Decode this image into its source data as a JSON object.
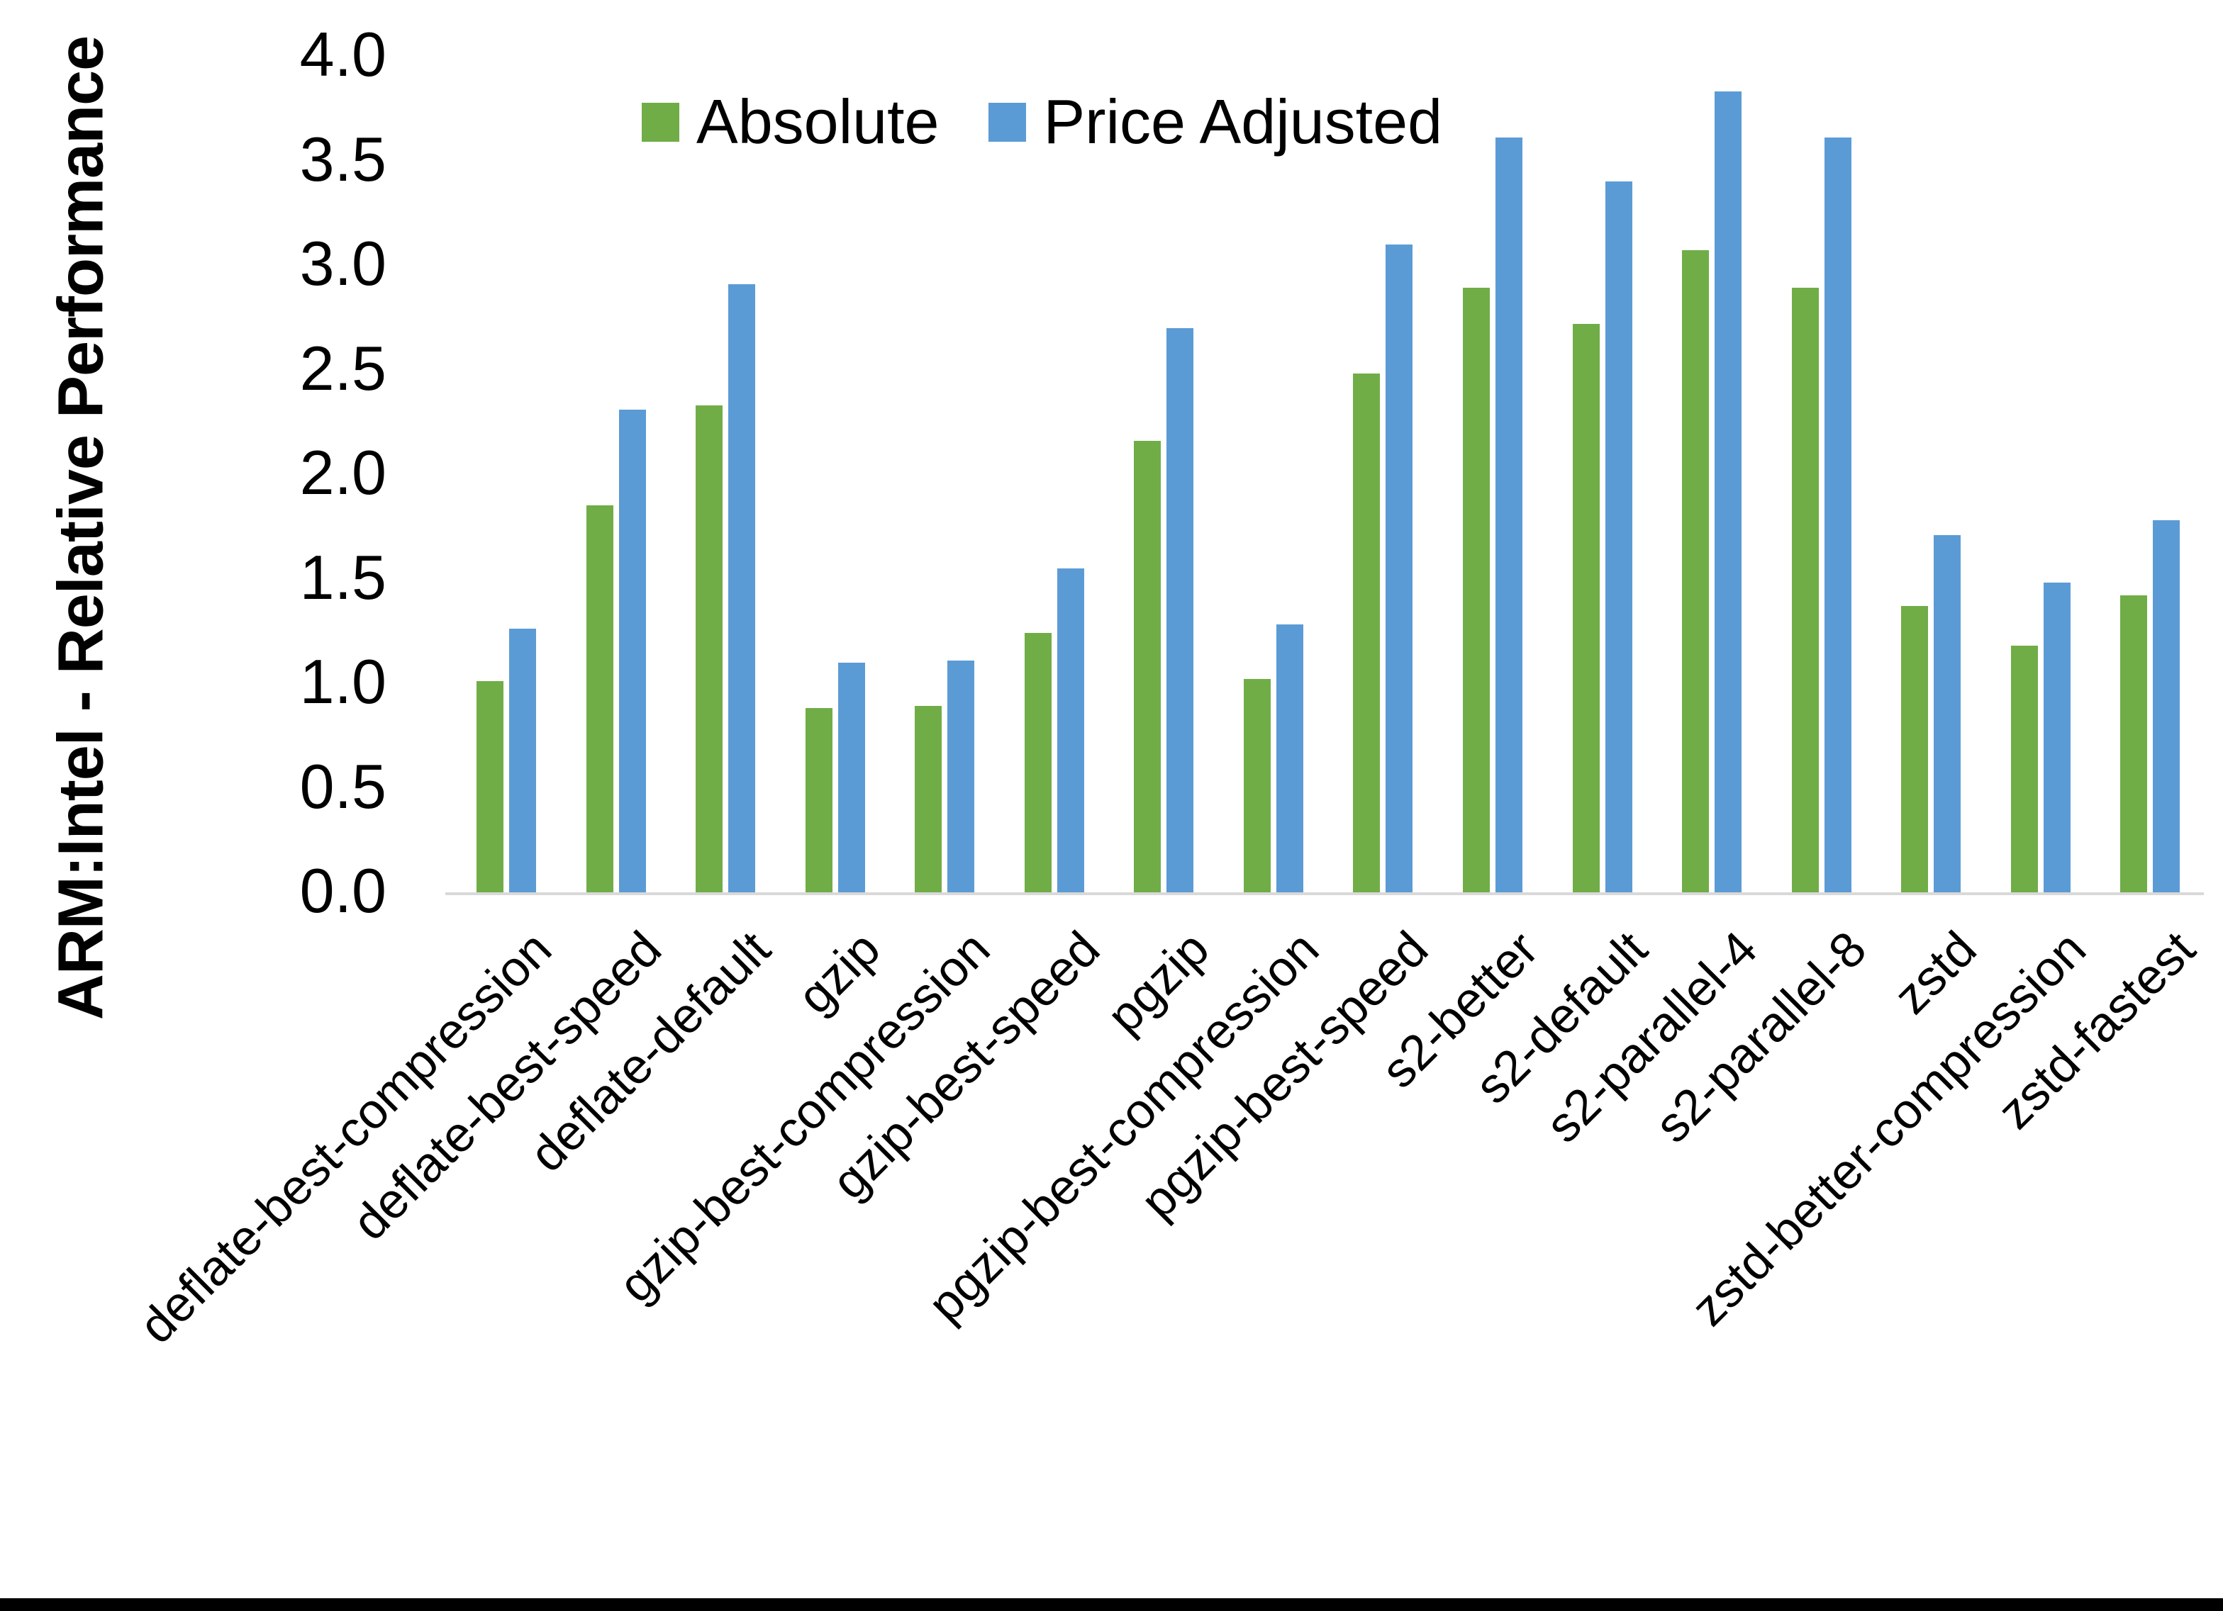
{
  "chart_data": {
    "type": "bar",
    "title": "",
    "xlabel": "",
    "ylabel": "ARM:Intel - Relative Performance",
    "ylim": [
      0.0,
      4.0
    ],
    "ytick_step": 0.5,
    "yticks": [
      "0.0",
      "0.5",
      "1.0",
      "1.5",
      "2.0",
      "2.5",
      "3.0",
      "3.5",
      "4.0"
    ],
    "grid": false,
    "legend_position": "top",
    "categories": [
      "deflate-best-compression",
      "deflate-best-speed",
      "deflate-default",
      "gzip",
      "gzip-best-compression",
      "gzip-best-speed",
      "pgzip",
      "pgzip-best-compression",
      "pgzip-best-speed",
      "s2-better",
      "s2-default",
      "s2-parallel-4",
      "s2-parallel-8",
      "zstd",
      "zstd-better-compression",
      "zstd-fastest"
    ],
    "series": [
      {
        "name": "Absolute",
        "color": "#70AD47",
        "values": [
          1.01,
          1.85,
          2.33,
          0.88,
          0.89,
          1.24,
          2.16,
          1.02,
          2.48,
          2.89,
          2.72,
          3.07,
          2.89,
          1.37,
          1.18,
          1.42
        ]
      },
      {
        "name": "Price Adjusted",
        "color": "#5B9BD5",
        "values": [
          1.26,
          2.31,
          2.91,
          1.1,
          1.11,
          1.55,
          2.7,
          1.28,
          3.1,
          3.61,
          3.4,
          3.83,
          3.61,
          1.71,
          1.48,
          1.78
        ]
      }
    ]
  },
  "colors": {
    "background": "#FFFFFF",
    "axis_line": "#D9D9D9",
    "text": "#000000",
    "bottom_bar": "#000000"
  }
}
